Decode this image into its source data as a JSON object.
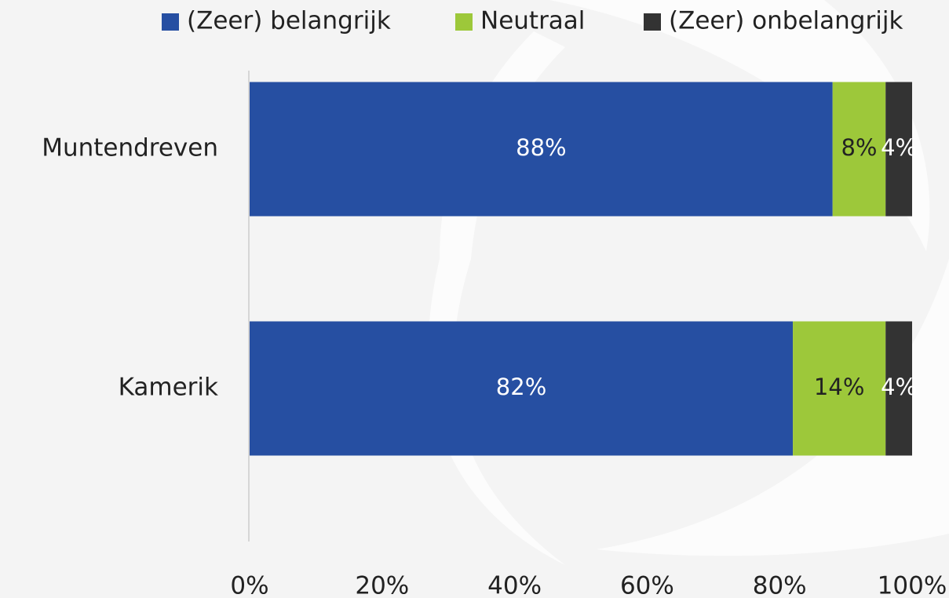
{
  "chart_data": {
    "type": "stacked-barh",
    "categories": [
      "Muntendreven",
      "Kamerik"
    ],
    "series": [
      {
        "name": "(Zeer) belangrijk",
        "color": "#264fa2",
        "label_color": "#ffffff",
        "values": [
          88,
          82
        ],
        "value_labels": [
          "88%",
          "82%"
        ]
      },
      {
        "name": "Neutraal",
        "color": "#9dc83a",
        "label_color": "#222222",
        "values": [
          8,
          14
        ],
        "value_labels": [
          "8%",
          "14%"
        ]
      },
      {
        "name": "(Zeer) onbelangrijk",
        "color": "#333333",
        "label_color": "#ffffff",
        "values": [
          4,
          4
        ],
        "value_labels": [
          "4%",
          "4%"
        ]
      }
    ],
    "xlim": [
      0,
      100
    ],
    "xticks": [
      {
        "value": 0,
        "label": "0%"
      },
      {
        "value": 20,
        "label": "20%"
      },
      {
        "value": 40,
        "label": "40%"
      },
      {
        "value": 60,
        "label": "60%"
      },
      {
        "value": 80,
        "label": "80%"
      },
      {
        "value": 100,
        "label": "100%"
      }
    ],
    "legend": "top"
  }
}
